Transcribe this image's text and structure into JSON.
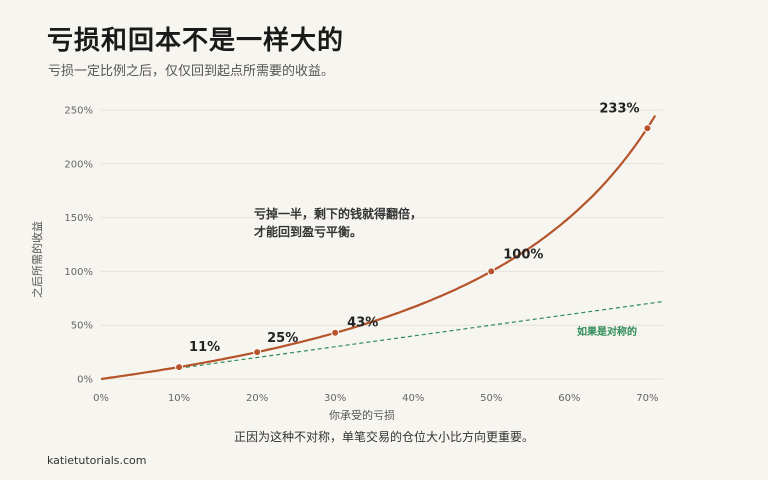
{
  "header": {
    "title": "亏损和回本不是一样大的",
    "subtitle": "亏损一定比例之后，仅仅回到起点所需要的收益。"
  },
  "caption": "正因为这种不对称，单笔交易的仓位大小比方向更重要。",
  "source": "katietutorials.com",
  "chart_data": {
    "type": "line",
    "xlabel": "你承受的亏损",
    "ylabel": "之后所需的收益",
    "xlim": [
      0,
      72
    ],
    "ylim": [
      0,
      250
    ],
    "x_ticks": [
      "0%",
      "10%",
      "20%",
      "30%",
      "40%",
      "50%",
      "60%",
      "70%"
    ],
    "y_ticks": [
      "0%",
      "50%",
      "100%",
      "150%",
      "200%",
      "250%"
    ],
    "grid": "horizontal",
    "series": [
      {
        "color": "#b5532a",
        "formula": "required_gain = loss / (100 - loss)",
        "points": [
          {
            "x": 10,
            "y": 11,
            "label": "11%"
          },
          {
            "x": 20,
            "y": 25,
            "label": "25%"
          },
          {
            "x": 30,
            "y": 43,
            "label": "43%"
          },
          {
            "x": 50,
            "y": 100,
            "label": "100%"
          },
          {
            "x": 70,
            "y": 233,
            "label": "233%"
          }
        ]
      },
      {
        "name": "如果是对称的",
        "color": "#2e8b57",
        "style": "dashed",
        "x": [
          10,
          72
        ],
        "y": [
          10,
          72
        ]
      }
    ],
    "annotation": {
      "lines": [
        "亏掉一半，剩下的钱就得翻倍，",
        "才能回到盈亏平衡。"
      ],
      "at": {
        "x": 20,
        "y": 160
      }
    }
  }
}
